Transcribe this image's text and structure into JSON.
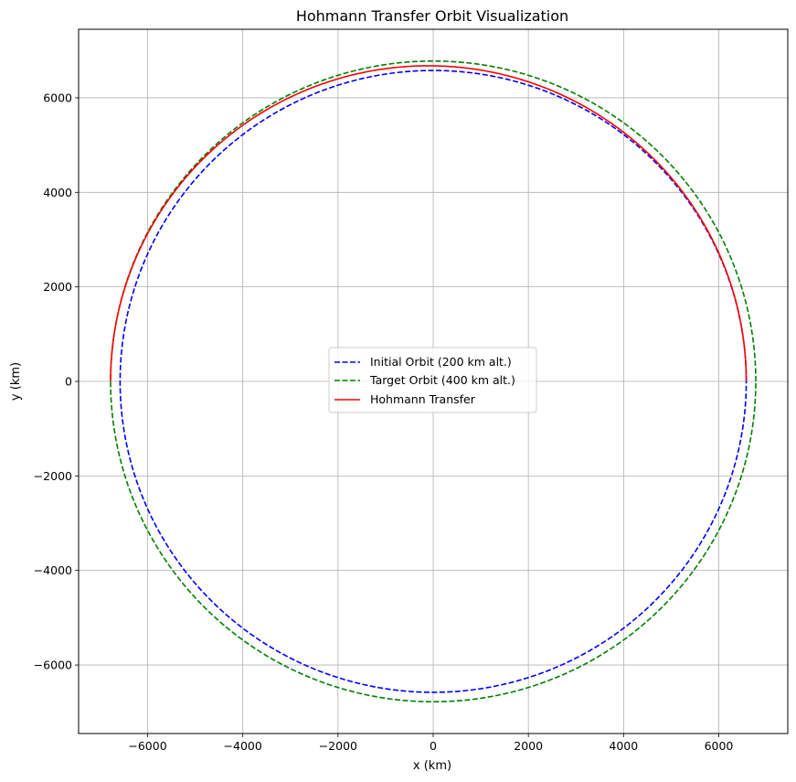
{
  "chart_data": {
    "type": "line",
    "title": "Hohmann Transfer Orbit Visualization",
    "xlabel": "x (km)",
    "ylabel": "y (km)",
    "xlim": [
      -7450,
      7450
    ],
    "ylim": [
      -7450,
      7450
    ],
    "xticks": [
      -6000,
      -4000,
      -2000,
      0,
      2000,
      4000,
      6000
    ],
    "yticks": [
      -6000,
      -4000,
      -2000,
      0,
      2000,
      4000,
      6000
    ],
    "xtick_labels": [
      "−6000",
      "−4000",
      "−2000",
      "0",
      "2000",
      "4000",
      "6000"
    ],
    "ytick_labels": [
      "−6000",
      "−4000",
      "−2000",
      "0",
      "2000",
      "4000",
      "6000"
    ],
    "grid": true,
    "legend_position": "center",
    "series": [
      {
        "name": "Initial Orbit (200 km alt.)",
        "kind": "circle",
        "radius": 6578,
        "theta_range_deg": [
          0,
          360
        ],
        "color": "#0000ff",
        "style": "dashed"
      },
      {
        "name": "Target Orbit (400 km alt.)",
        "kind": "circle",
        "radius": 6778,
        "theta_range_deg": [
          0,
          360
        ],
        "color": "#008000",
        "style": "dashed"
      },
      {
        "name": "Hohmann Transfer",
        "kind": "ellipse-arc",
        "periapsis": 6578,
        "apoapsis": 6778,
        "theta_range_deg": [
          0,
          180
        ],
        "color": "#ff0000",
        "style": "solid"
      }
    ]
  }
}
